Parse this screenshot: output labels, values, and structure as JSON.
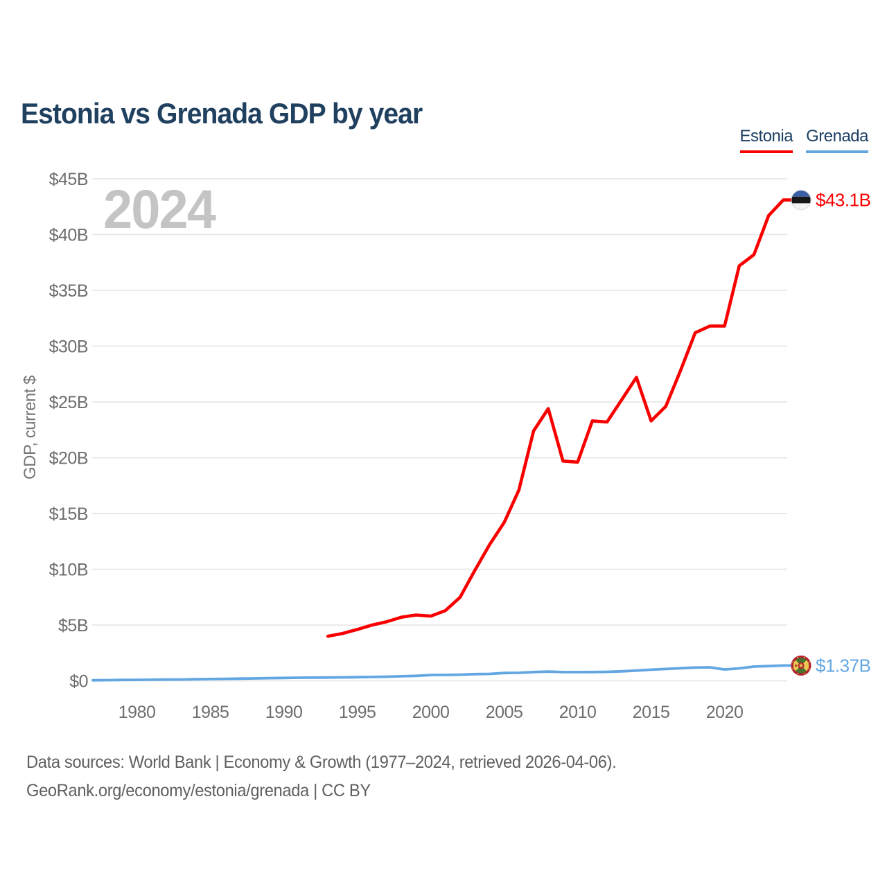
{
  "title": "Estonia vs Grenada GDP by year",
  "watermark": "2024",
  "end_labels": {
    "estonia": "$43.1B",
    "grenada": "$1.37B"
  },
  "footer": {
    "line1": "Data sources: World Bank | Economy & Growth (1977–2024, retrieved 2026-04-06).",
    "line2": "GeoRank.org/economy/estonia/grenada | CC BY"
  },
  "colors": {
    "title": "#20405f",
    "legend_text": "#1c3f63",
    "grid": "#e7e7e7",
    "tick_labels": "#6e6e6e",
    "axis_title": "#757575",
    "watermark": "#c4c4c4",
    "footer": "#606060"
  },
  "flags": {
    "estonia": {
      "blue": "#3b5fa5",
      "black": "#17171a",
      "white": "#f3f3f3",
      "edge": "#d8d8d8"
    },
    "grenada": {
      "ring": "#b3242e",
      "yellow": "#e9c752",
      "green": "#49722e",
      "nutmeg": "#b3242e"
    }
  },
  "chart_data": {
    "type": "line",
    "title": "Estonia vs Grenada GDP by year",
    "xlabel": "",
    "ylabel": "GDP, current $",
    "xlim": [
      1977,
      2024
    ],
    "ylim": [
      0,
      45
    ],
    "grid": "horizontal",
    "legend_position": "top-right",
    "yticks": [
      0,
      5,
      10,
      15,
      20,
      25,
      30,
      35,
      40,
      45
    ],
    "ytick_labels": [
      "$0",
      "$5B",
      "$10B",
      "$15B",
      "$20B",
      "$25B",
      "$30B",
      "$35B",
      "$40B",
      "$45B"
    ],
    "xticks": [
      1980,
      1985,
      1990,
      1995,
      2000,
      2005,
      2010,
      2015,
      2020
    ],
    "xtick_labels": [
      "1980",
      "1985",
      "1990",
      "1995",
      "2000",
      "2005",
      "2010",
      "2015",
      "2020"
    ],
    "series": [
      {
        "name": "Estonia",
        "color": "#f80000",
        "unit": "billion current US$",
        "end_label": "$43.1B",
        "years": [
          1993,
          1994,
          1995,
          1996,
          1997,
          1998,
          1999,
          2000,
          2001,
          2002,
          2003,
          2004,
          2005,
          2006,
          2007,
          2008,
          2009,
          2010,
          2011,
          2012,
          2013,
          2014,
          2015,
          2016,
          2017,
          2018,
          2019,
          2020,
          2021,
          2022,
          2023,
          2024
        ],
        "values": [
          4.0,
          4.25,
          4.6,
          5.0,
          5.3,
          5.7,
          5.9,
          5.8,
          6.3,
          7.5,
          9.9,
          12.2,
          14.2,
          17.1,
          22.4,
          24.4,
          19.7,
          19.6,
          23.3,
          23.2,
          25.2,
          27.2,
          23.3,
          24.6,
          27.8,
          31.2,
          31.8,
          31.8,
          37.2,
          38.2,
          41.7,
          43.1
        ]
      },
      {
        "name": "Grenada",
        "color": "#63a7e2",
        "unit": "billion current US$",
        "end_label": "$1.37B",
        "years": [
          1977,
          1978,
          1979,
          1980,
          1981,
          1982,
          1983,
          1984,
          1985,
          1986,
          1987,
          1988,
          1989,
          1990,
          1991,
          1992,
          1993,
          1994,
          1995,
          1996,
          1997,
          1998,
          1999,
          2000,
          2001,
          2002,
          2003,
          2004,
          2005,
          2006,
          2007,
          2008,
          2009,
          2010,
          2011,
          2012,
          2013,
          2014,
          2015,
          2016,
          2017,
          2018,
          2019,
          2020,
          2021,
          2022,
          2023,
          2024
        ],
        "values": [
          0.05,
          0.06,
          0.08,
          0.09,
          0.1,
          0.11,
          0.12,
          0.14,
          0.16,
          0.18,
          0.2,
          0.22,
          0.24,
          0.26,
          0.28,
          0.29,
          0.3,
          0.31,
          0.33,
          0.35,
          0.37,
          0.41,
          0.45,
          0.52,
          0.53,
          0.55,
          0.6,
          0.62,
          0.7,
          0.72,
          0.79,
          0.83,
          0.78,
          0.78,
          0.79,
          0.81,
          0.85,
          0.92,
          1.0,
          1.06,
          1.13,
          1.19,
          1.21,
          1.02,
          1.12,
          1.28,
          1.32,
          1.37
        ]
      }
    ]
  }
}
